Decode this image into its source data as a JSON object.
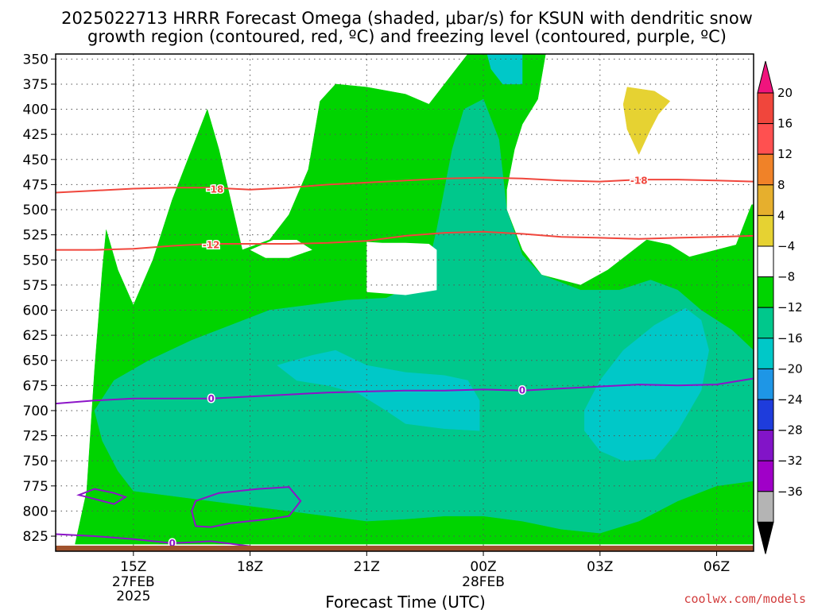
{
  "title": {
    "line1": "2025022713 HRRR Forecast Omega (shaded, μbar/s) for KSUN with dendritic snow",
    "line2": "growth region (contoured, red, ºC) and freezing level (contoured, purple, ºC)"
  },
  "credit": "coolwx.com/models",
  "colors": {
    "green": "#00d400",
    "teal": "#00c88c",
    "cyan": "#00c8c8",
    "yellow": "#e6d232",
    "red_contour": "#f0463c",
    "purple_contour": "#8c14c8",
    "ground": "#a0522d"
  },
  "chart_data": {
    "type": "heatmap",
    "xlabel": "Forecast Time (UTC)",
    "x_ticks": [
      {
        "label": "15Z",
        "sub1": "27FEB",
        "sub2": "2025",
        "hour": 15
      },
      {
        "label": "18Z",
        "sub1": "",
        "sub2": "",
        "hour": 18
      },
      {
        "label": "21Z",
        "sub1": "",
        "sub2": "",
        "hour": 21
      },
      {
        "label": "00Z",
        "sub1": "28FEB",
        "sub2": "",
        "hour": 24
      },
      {
        "label": "03Z",
        "sub1": "",
        "sub2": "",
        "hour": 27
      },
      {
        "label": "06Z",
        "sub1": "",
        "sub2": "",
        "hour": 30
      }
    ],
    "xlim": [
      13.0,
      30.95
    ],
    "y_ticks": [
      350,
      375,
      400,
      425,
      450,
      475,
      500,
      525,
      550,
      575,
      600,
      625,
      650,
      675,
      700,
      725,
      750,
      775,
      800,
      825
    ],
    "ylim": [
      345,
      840
    ],
    "grid": true,
    "colorbar": {
      "labels": [
        "20",
        "16",
        "12",
        "8",
        "4",
        "−4",
        "−8",
        "−12",
        "−16",
        "−20",
        "−24",
        "−28",
        "−32",
        "−36"
      ],
      "bands": [
        "#f0463c",
        "#ff5050",
        "#f08228",
        "#e6af2d",
        "#e6d232",
        "#ffffff",
        "#00d400",
        "#00c88c",
        "#00c8c8",
        "#1e96e6",
        "#1e3cdc",
        "#8214c8",
        "#a000c8",
        "#b4b4b4"
      ],
      "top_color": "#f0147d",
      "bottom_color": "#000000"
    },
    "contours": [
      {
        "label": "-18",
        "color": "#f0463c",
        "points": [
          [
            13.0,
            483
          ],
          [
            14,
            481
          ],
          [
            15,
            479
          ],
          [
            16,
            478
          ],
          [
            17,
            478
          ],
          [
            18,
            480
          ],
          [
            19,
            478
          ],
          [
            20,
            475
          ],
          [
            21,
            473
          ],
          [
            22,
            471
          ],
          [
            23,
            469
          ],
          [
            24,
            468
          ],
          [
            25,
            469
          ],
          [
            26,
            471
          ],
          [
            27,
            472
          ],
          [
            28,
            470
          ],
          [
            29,
            470
          ],
          [
            30,
            471
          ],
          [
            30.95,
            472
          ]
        ],
        "label_at": [
          [
            17.1,
            480
          ],
          [
            28.0,
            471
          ]
        ]
      },
      {
        "label": "-12",
        "color": "#f0463c",
        "points": [
          [
            13.0,
            540
          ],
          [
            14,
            540
          ],
          [
            15,
            539
          ],
          [
            16,
            536
          ],
          [
            17,
            534
          ],
          [
            18,
            534
          ],
          [
            19,
            534
          ],
          [
            20,
            533
          ],
          [
            21,
            531
          ],
          [
            22,
            526
          ],
          [
            23,
            523
          ],
          [
            24,
            522
          ],
          [
            25,
            524
          ],
          [
            26,
            527
          ],
          [
            27,
            528
          ],
          [
            28,
            529
          ],
          [
            29,
            528
          ],
          [
            30,
            527
          ],
          [
            30.95,
            526
          ]
        ],
        "label_at": [
          [
            17.0,
            535
          ]
        ]
      },
      {
        "label": "0",
        "color": "#8c14c8",
        "points": [
          [
            13.0,
            693
          ],
          [
            14,
            690
          ],
          [
            15,
            688
          ],
          [
            16,
            688
          ],
          [
            17,
            688
          ],
          [
            18,
            686
          ],
          [
            19,
            684
          ],
          [
            20,
            682
          ],
          [
            21,
            681
          ],
          [
            22,
            680
          ],
          [
            23,
            680
          ],
          [
            24,
            679
          ],
          [
            25,
            680
          ],
          [
            26,
            678
          ],
          [
            27,
            676
          ],
          [
            28,
            674
          ],
          [
            29,
            675
          ],
          [
            30,
            674
          ],
          [
            30.95,
            668
          ]
        ],
        "label_at": [
          [
            17.0,
            688
          ],
          [
            25.0,
            680
          ]
        ]
      }
    ],
    "fill_levels": [
      "-4",
      "-8",
      "-12",
      "4"
    ],
    "regions": [
      {
        "level": "-4",
        "color": "#00d400",
        "points": [
          [
            13.5,
            833
          ],
          [
            13.8,
            780
          ],
          [
            14.0,
            660
          ],
          [
            14.2,
            560
          ],
          [
            14.3,
            520
          ],
          [
            14.6,
            560
          ],
          [
            15.0,
            595
          ],
          [
            15.5,
            550
          ],
          [
            16.0,
            490
          ],
          [
            16.5,
            440
          ],
          [
            16.9,
            400
          ],
          [
            17.2,
            440
          ],
          [
            17.8,
            540
          ],
          [
            18.5,
            530
          ],
          [
            19.0,
            505
          ],
          [
            19.5,
            460
          ],
          [
            19.8,
            392
          ],
          [
            20.2,
            375
          ],
          [
            21.0,
            378
          ],
          [
            22.0,
            385
          ],
          [
            22.6,
            395
          ],
          [
            23.2,
            365
          ],
          [
            23.6,
            345
          ],
          [
            25.6,
            345
          ],
          [
            25.4,
            390
          ],
          [
            25.0,
            415
          ],
          [
            24.8,
            440
          ],
          [
            24.6,
            480
          ],
          [
            24.6,
            500
          ],
          [
            25.0,
            540
          ],
          [
            25.5,
            565
          ],
          [
            26.5,
            575
          ],
          [
            27.2,
            560
          ],
          [
            28.2,
            530
          ],
          [
            28.8,
            535
          ],
          [
            29.3,
            547
          ],
          [
            30.0,
            540
          ],
          [
            30.5,
            535
          ],
          [
            30.9,
            495
          ],
          [
            30.95,
            495
          ],
          [
            30.95,
            833
          ]
        ]
      },
      {
        "level": "-8",
        "color": "#00c88c",
        "points": [
          [
            14.0,
            700
          ],
          [
            14.5,
            670
          ],
          [
            15.4,
            650
          ],
          [
            16.5,
            630
          ],
          [
            17.5,
            615
          ],
          [
            18.5,
            600
          ],
          [
            19.5,
            595
          ],
          [
            20.5,
            590
          ],
          [
            21.5,
            588
          ],
          [
            22.5,
            570
          ],
          [
            22.8,
            520
          ],
          [
            23.2,
            440
          ],
          [
            23.5,
            400
          ],
          [
            24.0,
            390
          ],
          [
            24.4,
            430
          ],
          [
            24.6,
            500
          ],
          [
            25.0,
            545
          ],
          [
            25.5,
            565
          ],
          [
            26.5,
            580
          ],
          [
            27.5,
            580
          ],
          [
            28.3,
            570
          ],
          [
            29.0,
            580
          ],
          [
            29.6,
            600
          ],
          [
            30.4,
            620
          ],
          [
            30.95,
            640
          ],
          [
            30.95,
            770
          ],
          [
            30.0,
            775
          ],
          [
            29.0,
            790
          ],
          [
            28.0,
            810
          ],
          [
            27.0,
            822
          ],
          [
            26.0,
            818
          ],
          [
            25.0,
            810
          ],
          [
            24.0,
            805
          ],
          [
            23.0,
            805
          ],
          [
            22.0,
            808
          ],
          [
            21.0,
            810
          ],
          [
            20.0,
            805
          ],
          [
            19.0,
            800
          ],
          [
            18.0,
            795
          ],
          [
            17.0,
            790
          ],
          [
            16.0,
            785
          ],
          [
            15.0,
            780
          ],
          [
            14.6,
            760
          ],
          [
            14.2,
            730
          ]
        ]
      },
      {
        "level": "-12",
        "color": "#00c8c8",
        "points": [
          [
            18.7,
            655
          ],
          [
            19.6,
            645
          ],
          [
            20.2,
            640
          ],
          [
            21.0,
            655
          ],
          [
            22.0,
            662
          ],
          [
            23.0,
            665
          ],
          [
            23.6,
            670
          ],
          [
            23.9,
            690
          ],
          [
            23.9,
            720
          ],
          [
            23.0,
            718
          ],
          [
            22.0,
            713
          ],
          [
            21.5,
            700
          ],
          [
            20.8,
            683
          ],
          [
            20.0,
            675
          ],
          [
            19.2,
            670
          ]
        ]
      },
      {
        "level": "-12",
        "color": "#00c8c8",
        "points": [
          [
            26.6,
            700
          ],
          [
            27.0,
            670
          ],
          [
            27.6,
            640
          ],
          [
            28.4,
            615
          ],
          [
            29.2,
            598
          ],
          [
            29.6,
            610
          ],
          [
            29.8,
            640
          ],
          [
            29.6,
            680
          ],
          [
            29.0,
            720
          ],
          [
            28.4,
            748
          ],
          [
            27.6,
            750
          ],
          [
            27.0,
            740
          ],
          [
            26.6,
            720
          ]
        ]
      },
      {
        "level": "-12",
        "color": "#00c8c8",
        "points": [
          [
            24.1,
            345
          ],
          [
            25.0,
            345
          ],
          [
            25.0,
            375
          ],
          [
            24.5,
            375
          ],
          [
            24.2,
            360
          ]
        ]
      },
      {
        "level": "4",
        "color": "#e6d232",
        "points": [
          [
            27.7,
            378
          ],
          [
            28.4,
            382
          ],
          [
            28.8,
            392
          ],
          [
            28.5,
            405
          ],
          [
            28.3,
            420
          ],
          [
            28.0,
            445
          ],
          [
            27.7,
            420
          ],
          [
            27.6,
            395
          ]
        ]
      }
    ],
    "white_holes": [
      [
        [
          21.0,
          532
        ],
        [
          21.4,
          533
        ],
        [
          22.0,
          533
        ],
        [
          22.6,
          534
        ],
        [
          22.8,
          540
        ],
        [
          22.8,
          580
        ],
        [
          22.0,
          585
        ],
        [
          21.0,
          582
        ],
        [
          21.0,
          560
        ]
      ],
      [
        [
          18.0,
          540
        ],
        [
          18.6,
          530
        ],
        [
          19.2,
          530
        ],
        [
          19.6,
          540
        ],
        [
          19.0,
          548
        ],
        [
          18.4,
          548
        ]
      ]
    ],
    "freezing_loops": [
      {
        "label": "0",
        "points": [
          [
            16.6,
            790
          ],
          [
            17.2,
            782
          ],
          [
            18.2,
            778
          ],
          [
            19.0,
            776
          ],
          [
            19.3,
            790
          ],
          [
            19.0,
            805
          ],
          [
            18.5,
            808
          ],
          [
            17.5,
            812
          ],
          [
            17.0,
            816
          ],
          [
            16.6,
            815
          ],
          [
            16.5,
            800
          ]
        ]
      },
      {
        "label": "",
        "points": [
          [
            13.6,
            784
          ],
          [
            14.0,
            778
          ],
          [
            14.5,
            782
          ],
          [
            14.8,
            786
          ],
          [
            14.5,
            793
          ],
          [
            14.0,
            788
          ]
        ]
      }
    ],
    "freezing_lower": {
      "points": [
        [
          13.0,
          823
        ],
        [
          14.0,
          825
        ],
        [
          15.0,
          828
        ],
        [
          16.0,
          832
        ],
        [
          17.0,
          830
        ],
        [
          18.0,
          835
        ],
        [
          18.4,
          838
        ]
      ],
      "label_at": [
        16.0,
        832
      ]
    }
  }
}
